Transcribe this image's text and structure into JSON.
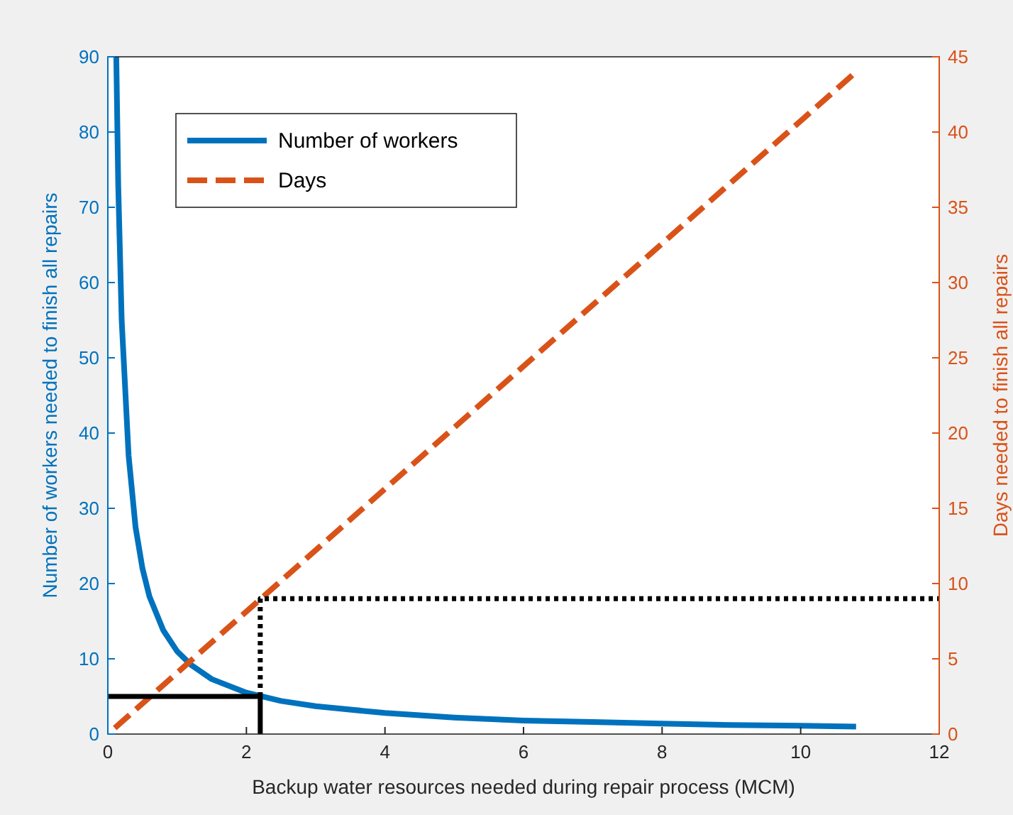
{
  "chart_data": {
    "type": "line",
    "xlabel": "Backup water resources needed during repair process (MCM)",
    "ylabel": "Number of workers needed to finish all repairs",
    "y2label": "Days needed to finish all repairs",
    "xlim": [
      0,
      12
    ],
    "xticks": [
      0,
      2,
      4,
      6,
      8,
      10,
      12
    ],
    "ylim": [
      0,
      90
    ],
    "yticks": [
      0,
      10,
      20,
      30,
      40,
      50,
      60,
      70,
      80,
      90
    ],
    "y2lim": [
      0,
      45
    ],
    "y2ticks": [
      0,
      5,
      10,
      15,
      20,
      25,
      30,
      35,
      40,
      45
    ],
    "legend": "top left",
    "grid": false,
    "series": [
      {
        "name": "Number of workers",
        "color": "#0072bd",
        "line_style": "solid",
        "x": [
          0.122,
          0.15,
          0.2,
          0.3,
          0.4,
          0.5,
          0.6,
          0.8,
          1,
          1.2,
          1.5,
          2,
          2.5,
          3,
          4,
          5,
          6,
          7,
          8,
          9,
          10,
          10.8
        ],
        "values": [
          90,
          73,
          55,
          37,
          27.5,
          22,
          18.3,
          13.8,
          11,
          9.2,
          7.3,
          5.5,
          4.4,
          3.7,
          2.8,
          2.2,
          1.8,
          1.6,
          1.4,
          1.2,
          1.1,
          1
        ]
      },
      {
        "name": "Days",
        "color": "#d95319",
        "line_style": "dashed",
        "axis": "y2",
        "x": [
          0.1,
          10.8
        ],
        "values": [
          0.4,
          44
        ]
      },
      {
        "color": "#000000",
        "line_style": "solid",
        "x": [
          0,
          2.2,
          2.2
        ],
        "values": [
          5,
          5,
          0
        ]
      },
      {
        "color": "#000000",
        "line_style": "dotted",
        "x": [
          2.2,
          2.2,
          12
        ],
        "values": [
          5,
          18,
          18
        ]
      }
    ]
  }
}
